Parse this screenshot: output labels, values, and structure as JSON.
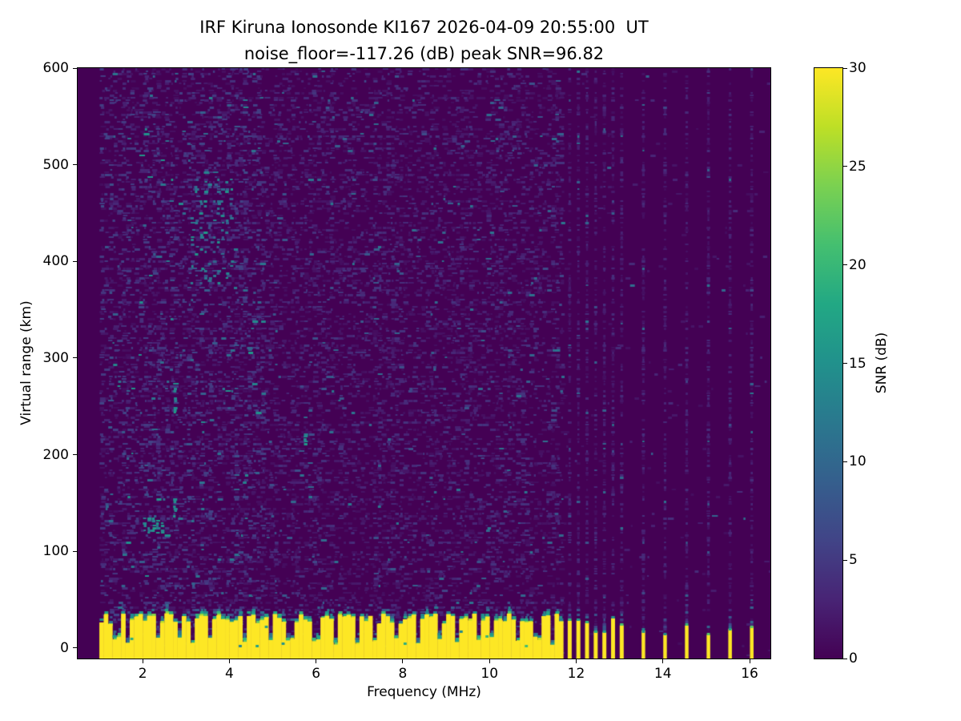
{
  "chart_data": {
    "type": "heatmap",
    "title_line1": "IRF Kiruna Ionosonde KI167 2026-04-09 20:55:00  UT",
    "title_line2": "noise_floor=-117.26 (dB) peak SNR=96.82",
    "xlabel": "Frequency (MHz)",
    "ylabel": "Virtual range (km)",
    "xlim": [
      0.5,
      16.48
    ],
    "ylim": [
      -10.8,
      600
    ],
    "x_ticks": [
      2,
      4,
      6,
      8,
      10,
      12,
      14,
      16
    ],
    "y_ticks": [
      0,
      100,
      200,
      300,
      400,
      500,
      600
    ],
    "noise_floor_db": -117.26,
    "peak_snr_db": 96.82,
    "colorbar": {
      "label": "SNR (dB)",
      "min": 0,
      "max": 30,
      "ticks": [
        0,
        5,
        10,
        15,
        20,
        25,
        30
      ],
      "colormap": "viridis",
      "stops": [
        "#440154",
        "#482475",
        "#414487",
        "#355f8d",
        "#2a788e",
        "#21918c",
        "#22a884",
        "#44bf70",
        "#7ad151",
        "#bddf26",
        "#fde725"
      ]
    },
    "sweep": {
      "f_min": 1.0,
      "f_max": 16.45,
      "f_step": 0.1,
      "range_step_km": 2.5
    },
    "ground_band": {
      "f_end": 11.66,
      "top_km_min": 25,
      "top_km_max": 36,
      "notch_freqs": [
        1.35,
        1.6,
        2.3,
        2.78,
        3.12,
        3.5,
        4.3,
        4.88,
        5.35,
        5.95,
        6.4,
        6.9,
        7.32,
        7.8,
        8.3,
        8.76,
        9.2,
        9.7,
        10.0,
        10.6,
        11.05,
        11.4
      ]
    },
    "rfi_stripes": {
      "dense": [
        11.78,
        11.98,
        12.18,
        12.38,
        12.58,
        12.78,
        12.98
      ],
      "sparse": [
        13.48,
        13.98,
        14.48,
        14.98,
        15.48,
        15.97
      ]
    },
    "echo_clusters": [
      {
        "f_min": 3.1,
        "f_max": 4.1,
        "r_min": 375,
        "r_max": 485,
        "density": 0.18,
        "snr_min": 7,
        "snr_max": 16
      },
      {
        "f_min": 2.72,
        "f_max": 2.84,
        "r_min": 243,
        "r_max": 270,
        "density": 0.75,
        "snr_min": 12,
        "snr_max": 17
      },
      {
        "f_min": 2.7,
        "f_max": 2.8,
        "r_min": 130,
        "r_max": 152,
        "density": 0.7,
        "snr_min": 12,
        "snr_max": 17
      },
      {
        "f_min": 2.05,
        "f_max": 2.45,
        "r_min": 118,
        "r_max": 136,
        "density": 0.55,
        "snr_min": 11,
        "snr_max": 17
      },
      {
        "f_min": 5.68,
        "f_max": 5.82,
        "r_min": 206,
        "r_max": 222,
        "density": 0.8,
        "snr_min": 12,
        "snr_max": 16
      }
    ],
    "noise_zones": [
      {
        "f_min": 1.0,
        "f_max": 4.8,
        "density": 0.42,
        "mean_snr": 3.5
      },
      {
        "f_min": 4.8,
        "f_max": 11.66,
        "density": 0.36,
        "mean_snr": 2.8
      },
      {
        "f_min": 11.66,
        "f_max": 16.45,
        "density": 0.015,
        "mean_snr": 2.5
      }
    ]
  }
}
